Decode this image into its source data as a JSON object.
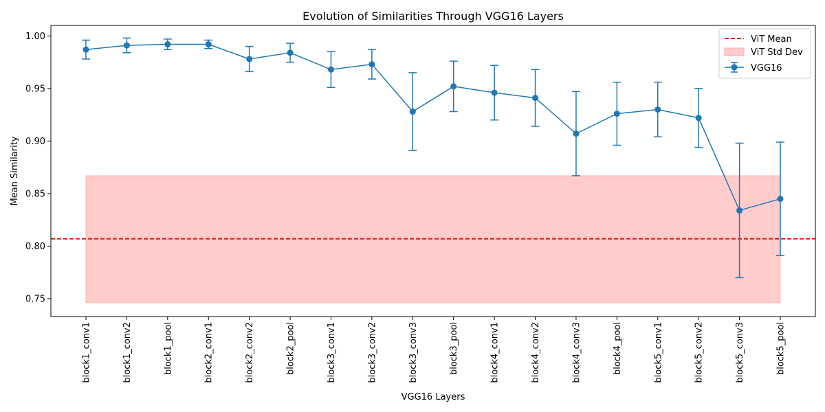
{
  "chart_data": {
    "type": "line",
    "title": "Evolution of Similarities Through VGG16 Layers",
    "xlabel": "VGG16 Layers",
    "ylabel": "Mean Similarity",
    "ylim": [
      0.733,
      1.01
    ],
    "yticks": [
      "0.75",
      "0.80",
      "0.85",
      "0.90",
      "0.95",
      "1.00"
    ],
    "grid": false,
    "legend_position": "top-right",
    "categories": [
      "block1_conv1",
      "block1_conv2",
      "block1_pool",
      "block2_conv1",
      "block2_conv2",
      "block2_pool",
      "block3_conv1",
      "block3_conv2",
      "block3_conv3",
      "block3_pool",
      "block4_conv1",
      "block4_conv2",
      "block4_conv3",
      "block4_pool",
      "block5_conv1",
      "block5_conv2",
      "block5_conv3",
      "block5_pool"
    ],
    "series": [
      {
        "name": "VGG16",
        "color": "#1f77b4",
        "values": [
          0.987,
          0.991,
          0.992,
          0.992,
          0.978,
          0.984,
          0.968,
          0.973,
          0.928,
          0.952,
          0.946,
          0.941,
          0.907,
          0.926,
          0.93,
          0.922,
          0.834,
          0.845
        ],
        "errors": [
          0.009,
          0.007,
          0.005,
          0.004,
          0.012,
          0.009,
          0.017,
          0.014,
          0.037,
          0.024,
          0.026,
          0.027,
          0.04,
          0.03,
          0.026,
          0.028,
          0.064,
          0.054
        ]
      }
    ],
    "reference_line": {
      "name": "ViT Mean",
      "value": 0.807,
      "color": "#e41a1c",
      "style": "dashed"
    },
    "reference_band": {
      "name": "ViT Std Dev",
      "low": 0.746,
      "high": 0.867,
      "color": "#ff9999"
    },
    "legend": [
      "ViT Mean",
      "ViT Std Dev",
      "VGG16"
    ]
  }
}
